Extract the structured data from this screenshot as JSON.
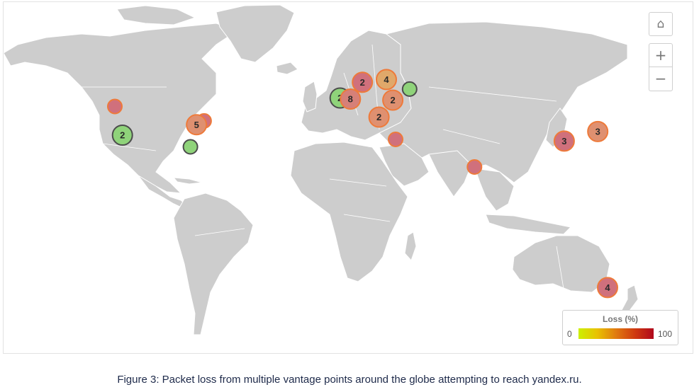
{
  "map": {
    "controls": {
      "home_icon": "⌂",
      "zoom_in": "+",
      "zoom_out": "−"
    },
    "legend": {
      "title": "Loss (%)",
      "min": "0",
      "max": "100",
      "gradient_colors": [
        "#ccf000",
        "#e9c100",
        "#e07a10",
        "#cf3a10",
        "#b0081c"
      ]
    },
    "land_color": "#cdcdcd",
    "markers": [
      {
        "id": "us-west-north",
        "label": "",
        "lon": -122.3,
        "lat": 47.5,
        "fill": "#d0707c",
        "stroke": "#ee7a3a"
      },
      {
        "id": "us-west-south",
        "label": "2",
        "lon": -118.2,
        "lat": 34.0,
        "fill": "#8fd37a",
        "stroke": "#4c4c4c"
      },
      {
        "id": "us-east-north",
        "label": "",
        "lon": -73.9,
        "lat": 40.7,
        "fill": "#d0707c",
        "stroke": "#ee7a3a"
      },
      {
        "id": "us-east-mid",
        "label": "5",
        "lon": -78.0,
        "lat": 38.9,
        "fill": "#df9070",
        "stroke": "#ee7a3a"
      },
      {
        "id": "us-florida",
        "label": "",
        "lon": -81.3,
        "lat": 28.5,
        "fill": "#8fd37a",
        "stroke": "#4c4c4c"
      },
      {
        "id": "uk",
        "label": "2",
        "lon": -0.1,
        "lat": 51.5,
        "fill": "#8fd37a",
        "stroke": "#4c4c4c"
      },
      {
        "id": "germany",
        "label": "8",
        "lon": 5.5,
        "lat": 51.0,
        "fill": "#d68078",
        "stroke": "#ee7a3a"
      },
      {
        "id": "scandinavia",
        "label": "2",
        "lon": 12.0,
        "lat": 58.9,
        "fill": "#d0707c",
        "stroke": "#ee7a3a"
      },
      {
        "id": "finland",
        "label": "4",
        "lon": 25.0,
        "lat": 60.2,
        "fill": "#e0a86a",
        "stroke": "#ee7a3a"
      },
      {
        "id": "russia",
        "label": "",
        "lon": 37.6,
        "lat": 55.7,
        "fill": "#8fd37a",
        "stroke": "#4c4c4c"
      },
      {
        "id": "ukraine",
        "label": "2",
        "lon": 28.5,
        "lat": 50.5,
        "fill": "#df9070",
        "stroke": "#ee7a3a"
      },
      {
        "id": "balkans",
        "label": "2",
        "lon": 21.0,
        "lat": 42.5,
        "fill": "#df9070",
        "stroke": "#ee7a3a"
      },
      {
        "id": "middle-east",
        "label": "",
        "lon": 30.0,
        "lat": 32.0,
        "fill": "#d0707c",
        "stroke": "#ee7a3a"
      },
      {
        "id": "india",
        "label": "",
        "lon": 72.8,
        "lat": 19.0,
        "fill": "#d0707c",
        "stroke": "#ee7a3a"
      },
      {
        "id": "china",
        "label": "3",
        "lon": 121.5,
        "lat": 31.2,
        "fill": "#d0707c",
        "stroke": "#ee7a3a"
      },
      {
        "id": "japan",
        "label": "3",
        "lon": 139.7,
        "lat": 35.7,
        "fill": "#df9070",
        "stroke": "#ee7a3a"
      },
      {
        "id": "australia",
        "label": "4",
        "lon": 145.0,
        "lat": -37.8,
        "fill": "#d0707c",
        "stroke": "#ee7a3a"
      }
    ]
  },
  "caption": "Figure 3: Packet loss from multiple vantage points around the globe attempting to reach yandex.ru."
}
